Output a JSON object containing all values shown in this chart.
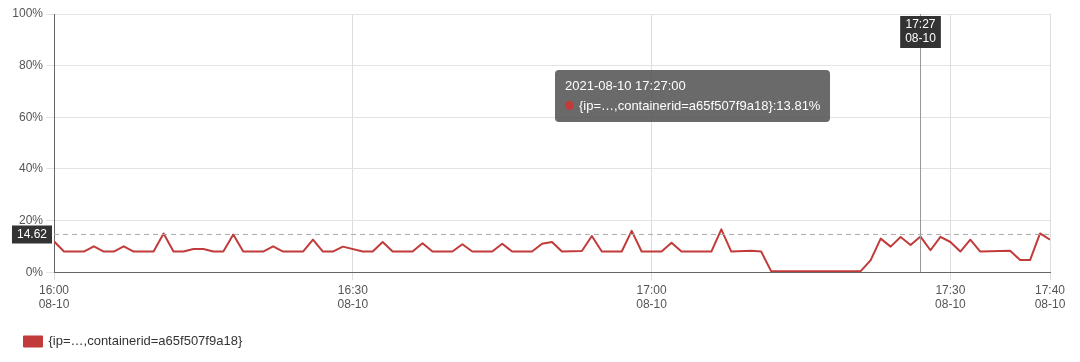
{
  "chart_data": {
    "type": "line",
    "x": [
      "2021-08-10T16:00",
      "2021-08-10T16:01",
      "2021-08-10T16:03",
      "2021-08-10T16:04",
      "2021-08-10T16:05",
      "2021-08-10T16:06",
      "2021-08-10T16:07",
      "2021-08-10T16:08",
      "2021-08-10T16:10",
      "2021-08-10T16:11",
      "2021-08-10T16:12",
      "2021-08-10T16:13",
      "2021-08-10T16:14",
      "2021-08-10T16:15",
      "2021-08-10T16:16",
      "2021-08-10T16:17",
      "2021-08-10T16:18",
      "2021-08-10T16:19",
      "2021-08-10T16:21",
      "2021-08-10T16:22",
      "2021-08-10T16:23",
      "2021-08-10T16:25",
      "2021-08-10T16:26",
      "2021-08-10T16:27",
      "2021-08-10T16:28",
      "2021-08-10T16:29",
      "2021-08-10T16:31",
      "2021-08-10T16:32",
      "2021-08-10T16:33",
      "2021-08-10T16:34",
      "2021-08-10T16:36",
      "2021-08-10T16:37",
      "2021-08-10T16:38",
      "2021-08-10T16:40",
      "2021-08-10T16:41",
      "2021-08-10T16:42",
      "2021-08-10T16:44",
      "2021-08-10T16:45",
      "2021-08-10T16:46",
      "2021-08-10T16:48",
      "2021-08-10T16:49",
      "2021-08-10T16:50",
      "2021-08-10T16:51",
      "2021-08-10T16:53",
      "2021-08-10T16:54",
      "2021-08-10T16:55",
      "2021-08-10T16:57",
      "2021-08-10T16:58",
      "2021-08-10T16:59",
      "2021-08-10T17:01",
      "2021-08-10T17:02",
      "2021-08-10T17:03",
      "2021-08-10T17:06",
      "2021-08-10T17:07",
      "2021-08-10T17:08",
      "2021-08-10T17:10",
      "2021-08-10T17:11",
      "2021-08-10T17:12",
      "2021-08-10T17:21",
      "2021-08-10T17:22",
      "2021-08-10T17:23",
      "2021-08-10T17:24",
      "2021-08-10T17:25",
      "2021-08-10T17:26",
      "2021-08-10T17:27",
      "2021-08-10T17:28",
      "2021-08-10T17:29",
      "2021-08-10T17:30",
      "2021-08-10T17:31",
      "2021-08-10T17:32",
      "2021-08-10T17:33",
      "2021-08-10T17:36",
      "2021-08-10T17:37",
      "2021-08-10T17:38",
      "2021-08-10T17:39",
      "2021-08-10T17:40"
    ],
    "series": [
      {
        "name": "{ip=…,containerid=a65f507f9a18}",
        "color": "#c23b3b",
        "values": [
          12,
          8,
          8,
          10,
          8,
          8,
          10,
          8,
          8,
          15,
          8,
          8,
          9,
          9,
          8,
          8,
          14.6,
          8,
          8,
          10,
          8,
          8,
          12.6,
          8,
          8,
          9.9,
          8,
          8,
          11.7,
          8,
          8,
          11.2,
          8,
          8,
          10.8,
          8,
          8,
          11,
          8,
          8,
          11,
          11.7,
          8,
          8.2,
          14,
          8,
          8,
          16,
          8,
          8,
          11.4,
          8,
          8,
          16.6,
          8,
          8.3,
          8,
          0.4,
          0.4,
          4.7,
          13,
          9.9,
          13.6,
          10.5,
          13.81,
          8.5,
          13.7,
          11.7,
          8,
          12.6,
          8,
          8.3,
          4.7,
          4.7,
          15,
          12.6
        ]
      }
    ],
    "xlim": [
      "2021-08-10T16:00",
      "2021-08-10T17:40"
    ],
    "xticks": [
      {
        "value": "2021-08-10T16:00",
        "label": "16:00\n08-10"
      },
      {
        "value": "2021-08-10T16:30",
        "label": "16:30\n08-10"
      },
      {
        "value": "2021-08-10T17:00",
        "label": "17:00\n08-10"
      },
      {
        "value": "2021-08-10T17:30",
        "label": "17:30\n08-10"
      },
      {
        "value": "2021-08-10T17:40",
        "label": "17:40\n08-10"
      }
    ],
    "ylim": [
      0,
      100
    ],
    "yticks": [
      {
        "value": 0,
        "label": "0%"
      },
      {
        "value": 20,
        "label": "20%"
      },
      {
        "value": 40,
        "label": "40%"
      },
      {
        "value": 60,
        "label": "60%"
      },
      {
        "value": 80,
        "label": "80%"
      },
      {
        "value": 100,
        "label": "100%"
      }
    ],
    "ref_lines": [
      {
        "axis": "y",
        "value": 14.62,
        "label": "14.62",
        "line_style": "dashed",
        "color": "#aaaaaa"
      },
      {
        "axis": "x",
        "value": "2021-08-10T17:27",
        "label": "17:27\n08-10",
        "line_style": "solid",
        "color": "#999999"
      }
    ],
    "annotations": [
      "2021-08-10 17:27:00",
      "{ip=…,containerid=a65f507f9a18}:13.81%"
    ],
    "grid": true,
    "legend": "bottom left",
    "marker": "none",
    "line_style": "solid"
  }
}
